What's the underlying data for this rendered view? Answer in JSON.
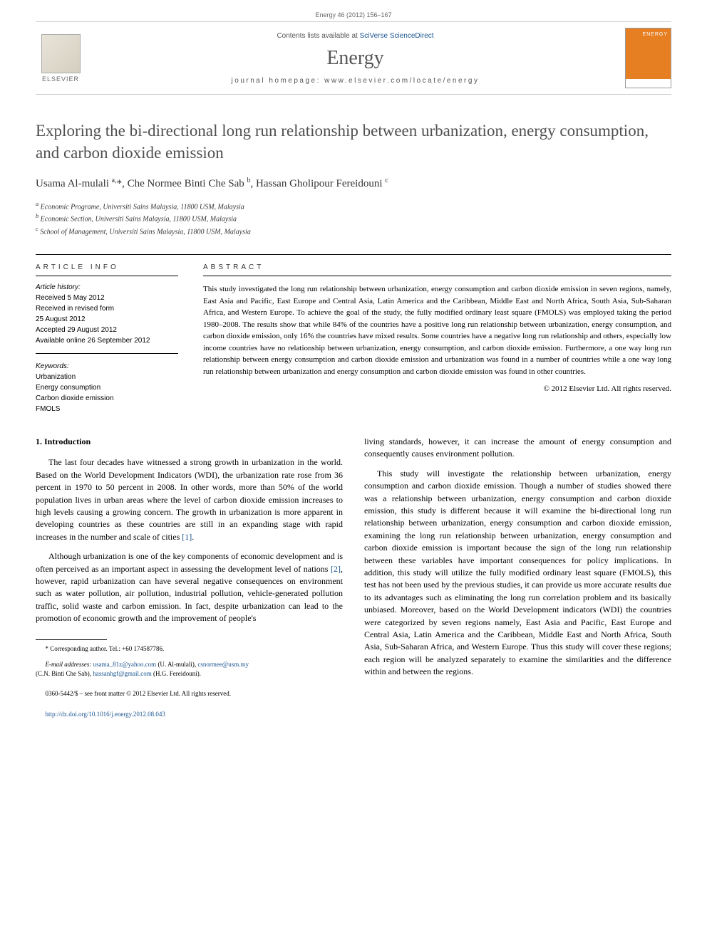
{
  "header": {
    "page_range": "Energy 46 (2012) 156–167",
    "contents_prefix": "Contents lists available at ",
    "contents_link": "SciVerse ScienceDirect",
    "journal_name": "Energy",
    "homepage_prefix": "journal homepage: ",
    "homepage_url": "www.elsevier.com/locate/energy",
    "publisher_label": "ELSEVIER",
    "cover_label": "ENERGY"
  },
  "article": {
    "title": "Exploring the bi-directional long run relationship between urbanization, energy consumption, and carbon dioxide emission",
    "authors_html": "Usama Al-mulali <sup>a,</sup>*, Che Normee Binti Che Sab <sup>b</sup>, Hassan Gholipour Fereidouni <sup>c</sup>",
    "affiliations": [
      "Economic Programe, Universiti Sains Malaysia, 11800 USM, Malaysia",
      "Economic Section, Universiti Sains Malaysia, 11800 USM, Malaysia",
      "School of Management, Universiti Sains Malaysia, 11800 USM, Malaysia"
    ]
  },
  "info": {
    "heading": "ARTICLE INFO",
    "history_label": "Article history:",
    "received": "Received 5 May 2012",
    "revised": "Received in revised form",
    "revised_date": "25 August 2012",
    "accepted": "Accepted 29 August 2012",
    "online": "Available online 26 September 2012",
    "keywords_label": "Keywords:",
    "keywords": [
      "Urbanization",
      "Energy consumption",
      "Carbon dioxide emission",
      "FMOLS"
    ]
  },
  "abstract": {
    "heading": "ABSTRACT",
    "text": "This study investigated the long run relationship between urbanization, energy consumption and carbon dioxide emission in seven regions, namely, East Asia and Pacific, East Europe and Central Asia, Latin America and the Caribbean, Middle East and North Africa, South Asia, Sub-Saharan Africa, and Western Europe. To achieve the goal of the study, the fully modified ordinary least square (FMOLS) was employed taking the period 1980–2008. The results show that while 84% of the countries have a positive long run relationship between urbanization, energy consumption, and carbon dioxide emission, only 16% the countries have mixed results. Some countries have a negative long run relationship and others, especially low income countries have no relationship between urbanization, energy consumption, and carbon dioxide emission. Furthermore, a one way long run relationship between energy consumption and carbon dioxide emission and urbanization was found in a number of countries while a one way long run relationship between urbanization and energy consumption and carbon dioxide emission was found in other countries.",
    "copyright": "© 2012 Elsevier Ltd. All rights reserved."
  },
  "body": {
    "section_heading": "1. Introduction",
    "p1": "The last four decades have witnessed a strong growth in urbanization in the world. Based on the World Development Indicators (WDI), the urbanization rate rose from 36 percent in 1970 to 50 percent in 2008. In other words, more than 50% of the world population lives in urban areas where the level of carbon dioxide emission increases to high levels causing a growing concern. The growth in urbanization is more apparent in developing countries as these countries are still in an expanding stage with rapid increases in the number and scale of cities ",
    "ref1": "[1]",
    "p1_tail": ".",
    "p2": "Although urbanization is one of the key components of economic development and is often perceived as an important aspect in assessing the development level of nations ",
    "ref2": "[2]",
    "p2_tail": ", however, rapid urbanization can have several negative consequences on environment such as water pollution, air pollution, industrial pollution, vehicle-generated pollution traffic, solid waste and carbon emission. In fact, despite urbanization can lead to the promotion of economic growth and the improvement of people's",
    "p3": "living standards, however, it can increase the amount of energy consumption and consequently causes environment pollution.",
    "p4": "This study will investigate the relationship between urbanization, energy consumption and carbon dioxide emission. Though a number of studies showed there was a relationship between urbanization, energy consumption and carbon dioxide emission, this study is different because it will examine the bi-directional long run relationship between urbanization, energy consumption and carbon dioxide emission, examining the long run relationship between urbanization, energy consumption and carbon dioxide emission is important because the sign of the long run relationship between these variables have important consequences for policy implications. In addition, this study will utilize the fully modified ordinary least square (FMOLS), this test has not been used by the previous studies, it can provide us more accurate results due to its advantages such as eliminating the long run correlation problem and its basically unbiased. Moreover, based on the World Development indicators (WDI) the countries were categorized by seven regions namely, East Asia and Pacific, East Europe and Central Asia, Latin America and the Caribbean, Middle East and North Africa, South Asia, Sub-Saharan Africa, and Western Europe. Thus this study will cover these regions; each region will be analyzed separately to examine the similarities and the difference within and between the regions."
  },
  "footnote": {
    "corresponding": "* Corresponding author. Tel.: +60 174587786.",
    "email_label": "E-mail addresses: ",
    "email1": "usama_81z@yahoo.com",
    "email1_name": " (U. Al-mulali), ",
    "email2": "csnormee@usm.my",
    "email2_name": " (C.N. Binti Che Sab), ",
    "email3": "hassanhgf@gmail.com",
    "email3_name": " (H.G. Fereidouni)."
  },
  "bottom": {
    "issn": "0360-5442/$ – see front matter © 2012 Elsevier Ltd. All rights reserved.",
    "doi_label": "http://dx.doi.org/10.1016/j.energy.2012.08.043"
  },
  "colors": {
    "link": "#1a5490",
    "cover_bg": "#e67e22",
    "text_gray": "#505050"
  }
}
